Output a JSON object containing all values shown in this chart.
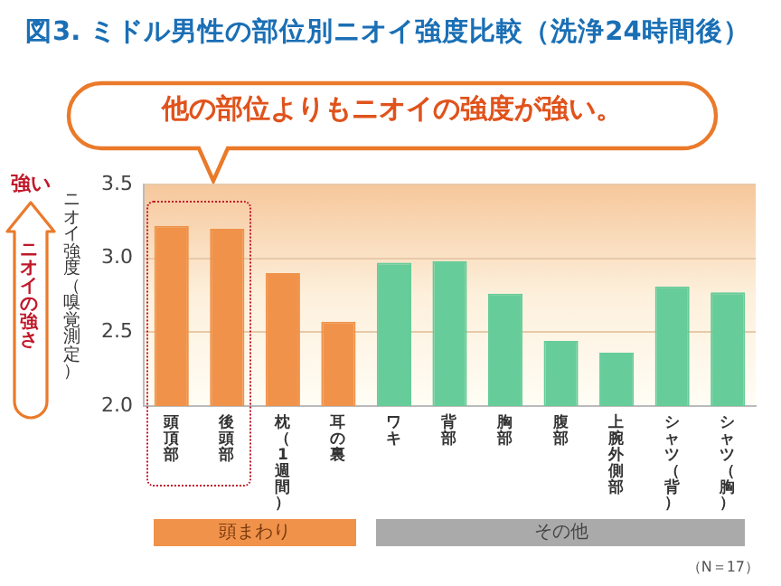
{
  "chart_data": {
    "type": "bar",
    "title": "図3. ミドル男性の部位別ニオイ強度比較（洗浄24時間後）",
    "ylabel": "ニオイ強度（嗅覚測定）",
    "categories": [
      "頭頂部",
      "後頭部",
      "枕（1週間）",
      "耳の裏",
      "ワキ",
      "背部",
      "胸部",
      "腹部",
      "上腕外側部",
      "シャツ（背）",
      "シャツ（胸）"
    ],
    "values": [
      3.22,
      3.2,
      2.9,
      2.57,
      2.97,
      2.98,
      2.76,
      2.44,
      2.36,
      2.81,
      2.77
    ],
    "colors": [
      "#f0924a",
      "#f0924a",
      "#f0924a",
      "#f0924a",
      "#66cc99",
      "#66cc99",
      "#66cc99",
      "#66cc99",
      "#66cc99",
      "#66cc99",
      "#66cc99"
    ],
    "ylim": [
      2.0,
      3.5
    ],
    "yticks": [
      {
        "value": 2.0,
        "label": "2.0"
      },
      {
        "value": 2.5,
        "label": "2.5"
      },
      {
        "value": 3.0,
        "label": "3.0"
      },
      {
        "value": 3.5,
        "label": "3.5"
      }
    ],
    "grid": "y",
    "annotations": [
      "他の部位よりもニオイの強度が強い。",
      "強い",
      "ニオイの強さ",
      "頭まわり",
      "その他",
      "（N＝17）"
    ]
  }
}
